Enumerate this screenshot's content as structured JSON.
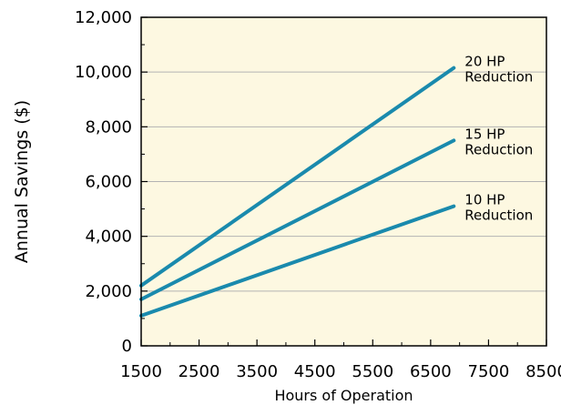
{
  "chart_data": {
    "type": "line",
    "title": "",
    "xlabel": "Hours of Operation",
    "ylabel": "Annual Savings ($)",
    "xlim": [
      1500,
      8500
    ],
    "ylim": [
      0,
      12000
    ],
    "x_ticks": [
      1500,
      2500,
      3500,
      4500,
      5500,
      6500,
      7500,
      8500
    ],
    "x_tick_labels": [
      "1500",
      "2500",
      "3500",
      "4500",
      "5500",
      "6500",
      "7500",
      "8500"
    ],
    "y_ticks": [
      0,
      2000,
      4000,
      6000,
      8000,
      10000,
      12000
    ],
    "y_tick_labels": [
      "0",
      "2,000",
      "4,000",
      "6,000",
      "8,000",
      "10,000",
      "12,000"
    ],
    "grid": "horizontal",
    "series": [
      {
        "label_lines": [
          "20 HP",
          "Reduction"
        ],
        "x": [
          1500,
          6900
        ],
        "values": [
          2200,
          10150
        ]
      },
      {
        "label_lines": [
          "15 HP",
          "Reduction"
        ],
        "x": [
          1500,
          6900
        ],
        "values": [
          1700,
          7500
        ]
      },
      {
        "label_lines": [
          "10 HP",
          "Reduction"
        ],
        "x": [
          1500,
          6900
        ],
        "values": [
          1100,
          5100
        ]
      }
    ],
    "colors": {
      "plot_background": "#fdf8e1",
      "line": "#1a8aad",
      "grid": "#b3b3b3",
      "axis": "#000000"
    }
  }
}
